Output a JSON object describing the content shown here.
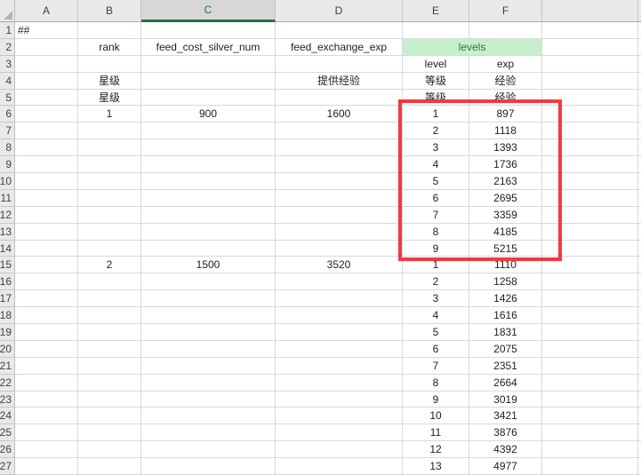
{
  "sheet": {
    "column_headers": [
      "A",
      "B",
      "C",
      "D",
      "E",
      "F",
      "",
      ""
    ],
    "selected_column": "C",
    "visible_rows": 27,
    "cells": [
      {
        "r": 1,
        "c": "A",
        "t": "##",
        "align": "left"
      },
      {
        "r": 2,
        "c": "B",
        "t": "rank"
      },
      {
        "r": 2,
        "c": "C",
        "t": "feed_cost_silver_num"
      },
      {
        "r": 2,
        "c": "D",
        "t": "feed_exchange_exp"
      },
      {
        "r": 2,
        "c": "E",
        "t": "levels",
        "merge_to": "F",
        "style": "levels_header"
      },
      {
        "r": 3,
        "c": "E",
        "t": "level"
      },
      {
        "r": 3,
        "c": "F",
        "t": "exp"
      },
      {
        "r": 4,
        "c": "B",
        "t": "星级"
      },
      {
        "r": 4,
        "c": "D",
        "t": "提供经验"
      },
      {
        "r": 4,
        "c": "E",
        "t": "等级"
      },
      {
        "r": 4,
        "c": "F",
        "t": "经验"
      },
      {
        "r": 5,
        "c": "B",
        "t": "星级"
      },
      {
        "r": 5,
        "c": "E",
        "t": "等级"
      },
      {
        "r": 5,
        "c": "F",
        "t": "经验"
      },
      {
        "r": 6,
        "c": "B",
        "t": "1"
      },
      {
        "r": 6,
        "c": "C",
        "t": "900"
      },
      {
        "r": 6,
        "c": "D",
        "t": "1600"
      },
      {
        "r": 6,
        "c": "E",
        "t": "1"
      },
      {
        "r": 6,
        "c": "F",
        "t": "897"
      },
      {
        "r": 7,
        "c": "E",
        "t": "2"
      },
      {
        "r": 7,
        "c": "F",
        "t": "1118"
      },
      {
        "r": 8,
        "c": "E",
        "t": "3"
      },
      {
        "r": 8,
        "c": "F",
        "t": "1393"
      },
      {
        "r": 9,
        "c": "E",
        "t": "4"
      },
      {
        "r": 9,
        "c": "F",
        "t": "1736"
      },
      {
        "r": 10,
        "c": "E",
        "t": "5"
      },
      {
        "r": 10,
        "c": "F",
        "t": "2163"
      },
      {
        "r": 11,
        "c": "E",
        "t": "6"
      },
      {
        "r": 11,
        "c": "F",
        "t": "2695"
      },
      {
        "r": 12,
        "c": "E",
        "t": "7"
      },
      {
        "r": 12,
        "c": "F",
        "t": "3359"
      },
      {
        "r": 13,
        "c": "E",
        "t": "8"
      },
      {
        "r": 13,
        "c": "F",
        "t": "4185"
      },
      {
        "r": 14,
        "c": "E",
        "t": "9"
      },
      {
        "r": 14,
        "c": "F",
        "t": "5215"
      },
      {
        "r": 15,
        "c": "B",
        "t": "2"
      },
      {
        "r": 15,
        "c": "C",
        "t": "1500"
      },
      {
        "r": 15,
        "c": "D",
        "t": "3520"
      },
      {
        "r": 15,
        "c": "E",
        "t": "1"
      },
      {
        "r": 15,
        "c": "F",
        "t": "1110"
      },
      {
        "r": 16,
        "c": "E",
        "t": "2"
      },
      {
        "r": 16,
        "c": "F",
        "t": "1258"
      },
      {
        "r": 17,
        "c": "E",
        "t": "3"
      },
      {
        "r": 17,
        "c": "F",
        "t": "1426"
      },
      {
        "r": 18,
        "c": "E",
        "t": "4"
      },
      {
        "r": 18,
        "c": "F",
        "t": "1616"
      },
      {
        "r": 19,
        "c": "E",
        "t": "5"
      },
      {
        "r": 19,
        "c": "F",
        "t": "1831"
      },
      {
        "r": 20,
        "c": "E",
        "t": "6"
      },
      {
        "r": 20,
        "c": "F",
        "t": "2075"
      },
      {
        "r": 21,
        "c": "E",
        "t": "7"
      },
      {
        "r": 21,
        "c": "F",
        "t": "2351"
      },
      {
        "r": 22,
        "c": "E",
        "t": "8"
      },
      {
        "r": 22,
        "c": "F",
        "t": "2664"
      },
      {
        "r": 23,
        "c": "E",
        "t": "9"
      },
      {
        "r": 23,
        "c": "F",
        "t": "3019"
      },
      {
        "r": 24,
        "c": "E",
        "t": "10"
      },
      {
        "r": 24,
        "c": "F",
        "t": "3421"
      },
      {
        "r": 25,
        "c": "E",
        "t": "11"
      },
      {
        "r": 25,
        "c": "F",
        "t": "3876"
      },
      {
        "r": 26,
        "c": "E",
        "t": "12"
      },
      {
        "r": 26,
        "c": "F",
        "t": "4392"
      },
      {
        "r": 27,
        "c": "E",
        "t": "13"
      },
      {
        "r": 27,
        "c": "F",
        "t": "4977"
      }
    ]
  },
  "annotation": {
    "type": "rectangle",
    "color": "#f4393d",
    "covers": "level/exp rows 1-9 of rank 1 (columns E-F, rows 5-15)"
  },
  "colors": {
    "levels_header_bg": "#c6efce",
    "levels_header_text": "#2a7642",
    "selected_column_accent": "#217346",
    "annotation_red": "#f4393d"
  }
}
